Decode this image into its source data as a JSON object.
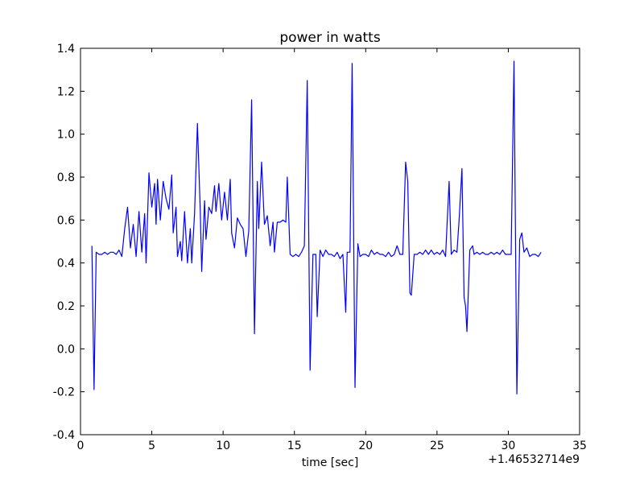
{
  "chart_data": {
    "type": "line",
    "title": "power in watts",
    "xlabel": "time [sec]",
    "x_offset_label": "+1.46532714e9",
    "color": "#0000ff",
    "x": [
      0.8,
      0.95,
      1.1,
      1.3,
      1.5,
      1.7,
      1.9,
      2.1,
      2.3,
      2.5,
      2.7,
      2.9,
      3.1,
      3.3,
      3.5,
      3.7,
      3.9,
      4.1,
      4.3,
      4.5,
      4.6,
      4.8,
      5.0,
      5.2,
      5.3,
      5.4,
      5.6,
      5.8,
      6.0,
      6.2,
      6.4,
      6.5,
      6.7,
      6.8,
      7.0,
      7.1,
      7.3,
      7.5,
      7.7,
      7.8,
      8.0,
      8.2,
      8.4,
      8.5,
      8.7,
      8.8,
      9.0,
      9.2,
      9.4,
      9.5,
      9.7,
      9.9,
      10.1,
      10.3,
      10.5,
      10.6,
      10.8,
      11.0,
      11.2,
      11.4,
      11.6,
      11.8,
      12.0,
      12.2,
      12.4,
      12.5,
      12.7,
      12.9,
      13.1,
      13.3,
      13.5,
      13.6,
      13.8,
      14.0,
      14.2,
      14.4,
      14.5,
      14.7,
      14.9,
      15.1,
      15.3,
      15.5,
      15.7,
      15.9,
      16.1,
      16.3,
      16.5,
      16.6,
      16.8,
      17.0,
      17.2,
      17.4,
      17.6,
      17.8,
      18.0,
      18.2,
      18.4,
      18.6,
      18.7,
      18.9,
      19.05,
      19.25,
      19.45,
      19.6,
      19.8,
      20.0,
      20.2,
      20.4,
      20.6,
      20.8,
      21.0,
      21.2,
      21.4,
      21.6,
      21.8,
      22.0,
      22.2,
      22.4,
      22.6,
      22.8,
      22.95,
      23.1,
      23.2,
      23.4,
      23.6,
      23.8,
      24.0,
      24.2,
      24.4,
      24.6,
      24.8,
      25.0,
      25.2,
      25.4,
      25.6,
      25.85,
      26.0,
      26.2,
      26.4,
      26.55,
      26.75,
      26.9,
      27.0,
      27.1,
      27.3,
      27.5,
      27.6,
      27.8,
      28.0,
      28.2,
      28.4,
      28.6,
      28.8,
      29.0,
      29.2,
      29.4,
      29.6,
      29.8,
      30.0,
      30.2,
      30.4,
      30.6,
      30.8,
      30.95,
      31.1,
      31.3,
      31.5,
      31.7,
      31.9,
      32.1,
      32.3
    ],
    "values": [
      0.48,
      -0.19,
      0.45,
      0.44,
      0.44,
      0.45,
      0.44,
      0.45,
      0.45,
      0.44,
      0.46,
      0.43,
      0.56,
      0.66,
      0.47,
      0.58,
      0.43,
      0.64,
      0.45,
      0.63,
      0.4,
      0.82,
      0.66,
      0.77,
      0.58,
      0.79,
      0.6,
      0.78,
      0.7,
      0.65,
      0.81,
      0.54,
      0.66,
      0.43,
      0.5,
      0.41,
      0.64,
      0.4,
      0.56,
      0.4,
      0.63,
      1.05,
      0.64,
      0.36,
      0.69,
      0.51,
      0.66,
      0.63,
      0.76,
      0.64,
      0.77,
      0.6,
      0.73,
      0.6,
      0.79,
      0.54,
      0.47,
      0.61,
      0.58,
      0.56,
      0.43,
      0.55,
      1.16,
      0.07,
      0.78,
      0.56,
      0.87,
      0.58,
      0.62,
      0.48,
      0.59,
      0.45,
      0.59,
      0.59,
      0.6,
      0.59,
      0.8,
      0.44,
      0.43,
      0.44,
      0.43,
      0.45,
      0.48,
      1.25,
      -0.1,
      0.44,
      0.44,
      0.15,
      0.46,
      0.43,
      0.46,
      0.44,
      0.44,
      0.43,
      0.45,
      0.42,
      0.44,
      0.17,
      0.45,
      0.45,
      1.33,
      -0.18,
      0.49,
      0.43,
      0.44,
      0.44,
      0.43,
      0.46,
      0.44,
      0.45,
      0.44,
      0.44,
      0.43,
      0.45,
      0.43,
      0.44,
      0.48,
      0.44,
      0.44,
      0.87,
      0.78,
      0.26,
      0.25,
      0.44,
      0.44,
      0.45,
      0.44,
      0.46,
      0.44,
      0.46,
      0.44,
      0.45,
      0.44,
      0.46,
      0.43,
      0.78,
      0.44,
      0.46,
      0.45,
      0.6,
      0.84,
      0.24,
      0.2,
      0.08,
      0.46,
      0.48,
      0.44,
      0.45,
      0.44,
      0.45,
      0.44,
      0.44,
      0.45,
      0.44,
      0.45,
      0.44,
      0.46,
      0.44,
      0.44,
      0.44,
      1.34,
      -0.21,
      0.51,
      0.54,
      0.45,
      0.47,
      0.43,
      0.44,
      0.44,
      0.43,
      0.45
    ],
    "xlim": [
      0,
      35
    ],
    "xticks": [
      0,
      5,
      10,
      15,
      20,
      25,
      30,
      35
    ],
    "ylim": [
      -0.4,
      1.4
    ],
    "yticks": [
      -0.4,
      -0.2,
      {
        "value": 0,
        "label": "0.0"
      },
      0.2,
      0.4,
      0.6,
      0.8,
      {
        "value": 1,
        "label": "1.0"
      },
      1.2,
      1.4
    ],
    "grid": false
  }
}
